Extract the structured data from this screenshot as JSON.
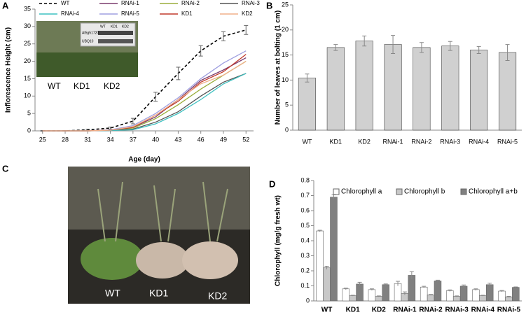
{
  "panel_labels": [
    "A",
    "B",
    "C",
    "D"
  ],
  "chart_data": [
    {
      "type": "line",
      "x_label": "Age (day)",
      "y_label": "Inflorescence Height (cm)",
      "x": [
        25,
        28,
        31,
        34,
        37,
        40,
        43,
        46,
        49,
        52
      ],
      "xlim": [
        24,
        53
      ],
      "xticks": [
        25,
        28,
        31,
        34,
        37,
        40,
        43,
        46,
        49,
        52
      ],
      "ylim": [
        0,
        35
      ],
      "yticks": [
        0,
        5,
        10,
        15,
        20,
        25,
        30,
        35
      ],
      "series": [
        {
          "name": "WT",
          "color": "#000000",
          "dashed": true,
          "values": [
            0,
            0,
            0.3,
            0.8,
            2.8,
            9.8,
            16.5,
            23,
            27.2,
            29
          ],
          "errors": [
            0.1,
            0.1,
            0.2,
            0.3,
            0.8,
            1.3,
            1.8,
            1.5,
            1.3,
            1.3
          ]
        },
        {
          "name": "RNAi-1",
          "color": "#7a3b6e",
          "values": [
            0,
            0,
            0,
            0.2,
            1,
            4,
            9,
            14.5,
            17.5,
            21
          ]
        },
        {
          "name": "RNAi-2",
          "color": "#9aae3c",
          "values": [
            0,
            0,
            0,
            0.2,
            0.8,
            3.5,
            7.5,
            12,
            16,
            20
          ]
        },
        {
          "name": "RNAi-3",
          "color": "#555555",
          "values": [
            0,
            0,
            0,
            0.1,
            0.5,
            2.5,
            5.5,
            10,
            14,
            16.5
          ]
        },
        {
          "name": "RNAi-4",
          "color": "#3cc0c0",
          "values": [
            0,
            0,
            0,
            0.1,
            0.3,
            2,
            5,
            9,
            13.5,
            16.5
          ]
        },
        {
          "name": "RNAi-5",
          "color": "#9f9fe0",
          "values": [
            0,
            0,
            0,
            0.3,
            1.5,
            5,
            9.5,
            15,
            19.5,
            23
          ]
        },
        {
          "name": "KD1",
          "color": "#c0392b",
          "values": [
            0,
            0,
            0,
            0.2,
            1,
            4.5,
            8.5,
            14,
            17,
            22
          ]
        },
        {
          "name": "KD2",
          "color": "#f0b08a",
          "values": [
            0,
            0,
            0,
            0.2,
            1.2,
            4.5,
            9,
            13.5,
            16,
            20
          ]
        }
      ]
    },
    {
      "type": "bar",
      "y_label": "Number of leaves at bolting (1 cm)",
      "categories": [
        "WT",
        "KD1",
        "KD2",
        "RNAi-1",
        "RNAi-2",
        "RNAi-3",
        "RNAi-4",
        "RNAi-5"
      ],
      "values": [
        10.4,
        16.5,
        17.8,
        17.1,
        16.5,
        16.8,
        16,
        15.5
      ],
      "errors": [
        0.8,
        0.6,
        1,
        1.8,
        1,
        0.9,
        0.7,
        1.6
      ],
      "color": "#d0d0d0",
      "ylim": [
        0,
        25
      ],
      "yticks": [
        0,
        5,
        10,
        15,
        20,
        25
      ]
    },
    {
      "type": "grouped_bar",
      "y_label": "Chlorophyll  (mg/g fresh wt)",
      "categories": [
        "WT",
        "KD1",
        "KD2",
        "RNAi-1",
        "RNAi-2",
        "RNAi-3",
        "RNAi-4",
        "RNAi-5"
      ],
      "ylim": [
        0,
        0.8
      ],
      "yticks": [
        0,
        0.1,
        0.2,
        0.3,
        0.4,
        0.5,
        0.6,
        0.7,
        0.8
      ],
      "series": [
        {
          "name": "Chlorophyll a",
          "color": "#ffffff",
          "values": [
            0.465,
            0.08,
            0.075,
            0.115,
            0.092,
            0.068,
            0.075,
            0.065
          ],
          "errors": [
            0.005,
            0.005,
            0.005,
            0.015,
            0.005,
            0.005,
            0.005,
            0.004
          ]
        },
        {
          "name": "Chlorophyll b",
          "color": "#c8c8c8",
          "values": [
            0.22,
            0.035,
            0.03,
            0.05,
            0.04,
            0.03,
            0.035,
            0.027
          ],
          "errors": [
            0.01,
            0.003,
            0.003,
            0.01,
            0.003,
            0.003,
            0.003,
            0.003
          ]
        },
        {
          "name": "Chlorophyll a+b",
          "color": "#808080",
          "values": [
            0.69,
            0.112,
            0.108,
            0.17,
            0.133,
            0.098,
            0.108,
            0.09
          ],
          "errors": [
            0.015,
            0.012,
            0.005,
            0.025,
            0.005,
            0.008,
            0.01,
            0.003
          ]
        }
      ]
    }
  ],
  "photos": {
    "inset_labels": [
      "WT",
      "KD1",
      "KD2"
    ],
    "gel_lanes": [
      "WT",
      "KD1",
      "KD2"
    ],
    "gel_rows": [
      "At5g51720",
      "UBQ10"
    ],
    "plant_labels": [
      "WT",
      "KD1",
      "KD2"
    ]
  }
}
